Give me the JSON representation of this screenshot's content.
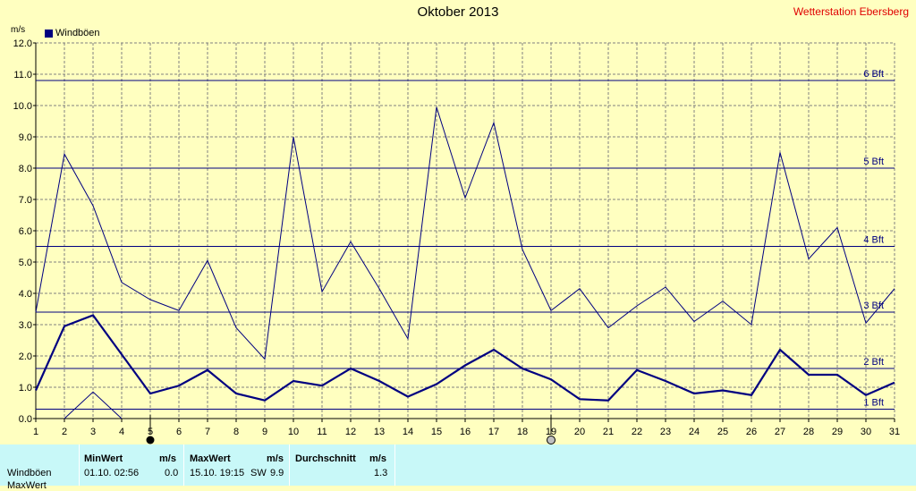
{
  "header": {
    "title": "Oktober 2013",
    "station": "Wetterstation Ebersberg",
    "unit": "m/s",
    "legend_label": "Windböen"
  },
  "colors": {
    "background": "#ffffc0",
    "plot_background": "#ffffc0",
    "series": "#000080",
    "grid": "#808080",
    "station_text": "#e00000",
    "stats_background": "#c8f8f8"
  },
  "chart_data": {
    "type": "line",
    "title": "Oktober 2013",
    "xlabel": "",
    "ylabel": "m/s",
    "x": [
      1,
      2,
      3,
      4,
      5,
      6,
      7,
      8,
      9,
      10,
      11,
      12,
      13,
      14,
      15,
      16,
      17,
      18,
      19,
      20,
      21,
      22,
      23,
      24,
      25,
      26,
      27,
      28,
      29,
      30,
      31
    ],
    "xlim": [
      1,
      31
    ],
    "ylim": [
      0,
      12
    ],
    "yticks": [
      "0.0",
      "1.0",
      "2.0",
      "3.0",
      "4.0",
      "5.0",
      "6.0",
      "7.0",
      "8.0",
      "9.0",
      "10.0",
      "11.0",
      "12.0"
    ],
    "grid": true,
    "legend": "top-left",
    "series": [
      {
        "name": "Windböen",
        "style": "bold",
        "values": [
          0.9,
          2.95,
          3.3,
          2.05,
          0.8,
          1.05,
          1.55,
          0.8,
          0.58,
          1.2,
          1.05,
          1.6,
          1.2,
          0.7,
          1.1,
          1.7,
          2.2,
          1.6,
          1.25,
          0.62,
          0.58,
          1.55,
          1.2,
          0.8,
          0.9,
          0.75,
          2.2,
          1.4,
          1.4,
          0.75,
          1.15
        ]
      },
      {
        "style": "thin",
        "values": [
          3.4,
          8.45,
          6.8,
          4.35,
          3.8,
          3.45,
          5.05,
          2.9,
          1.9,
          9.0,
          4.05,
          5.65,
          4.15,
          2.55,
          9.95,
          7.05,
          9.45,
          5.4,
          3.45,
          4.15,
          2.9,
          3.6,
          4.2,
          3.1,
          3.75,
          3.0,
          8.5,
          5.1,
          6.1,
          3.05,
          4.15
        ]
      },
      {
        "style": "thin",
        "values": [
          null,
          0.0,
          0.85,
          0.0,
          null,
          null,
          null,
          null,
          null,
          null,
          null,
          null,
          null,
          null,
          null,
          null,
          null,
          null,
          null,
          null,
          null,
          null,
          null,
          null,
          null,
          null,
          null,
          null,
          null,
          null,
          null
        ]
      }
    ],
    "beaufort_lines": [
      {
        "label": "1 Bft",
        "value": 0.3
      },
      {
        "label": "2 Bft",
        "value": 1.6
      },
      {
        "label": "3 Bft",
        "value": 3.4
      },
      {
        "label": "4 Bft",
        "value": 5.5
      },
      {
        "label": "5 Bft",
        "value": 8.0
      },
      {
        "label": "6 Bft",
        "value": 10.8
      }
    ],
    "markers": [
      {
        "day": 5,
        "type": "filled"
      },
      {
        "day": 19,
        "type": "hollow"
      }
    ]
  },
  "stats": {
    "row_label": "Windböen",
    "row2_label": "MaxWert",
    "min_header": "MinWert",
    "unit_header": "m/s",
    "max_header": "MaxWert",
    "avg_header": "Durchschnitt",
    "min_time": "01.10.  02:56",
    "min_value": "0.0",
    "max_time": "15.10.  19:15",
    "max_dir": "SW",
    "max_value": "9.9",
    "avg_value": "1.3"
  }
}
